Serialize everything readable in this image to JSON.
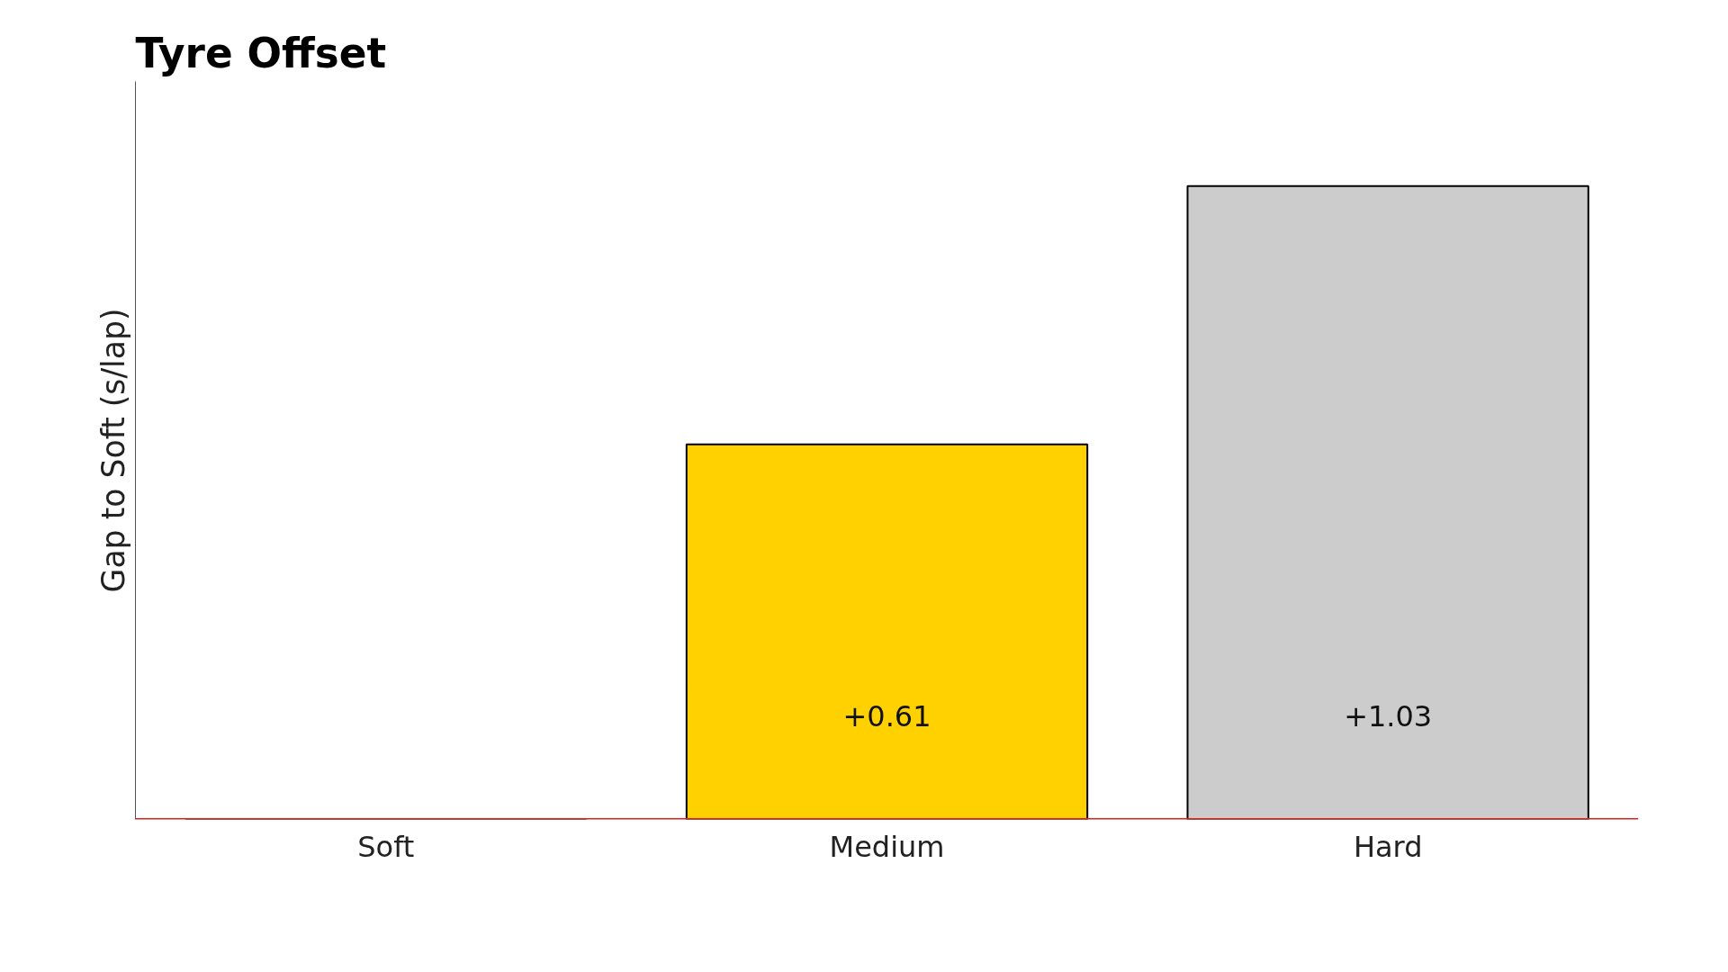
{
  "chart_data": {
    "type": "bar",
    "title": "Tyre Offset",
    "ylabel": "Gap to Soft (s/lap)",
    "categories": [
      "Soft",
      "Medium",
      "Hard"
    ],
    "values": [
      0,
      0.61,
      1.03
    ],
    "colors": [
      "#da291c",
      "#ffd100",
      "#cccccc"
    ],
    "value_labels": [
      null,
      "+0.61",
      "+1.03"
    ],
    "ylim": [
      0,
      1.2
    ],
    "tick_labels": "x",
    "grid": false,
    "ref_lines": [
      {
        "axis": "y",
        "value": 0,
        "label": null,
        "color": "#e0201b"
      }
    ]
  }
}
